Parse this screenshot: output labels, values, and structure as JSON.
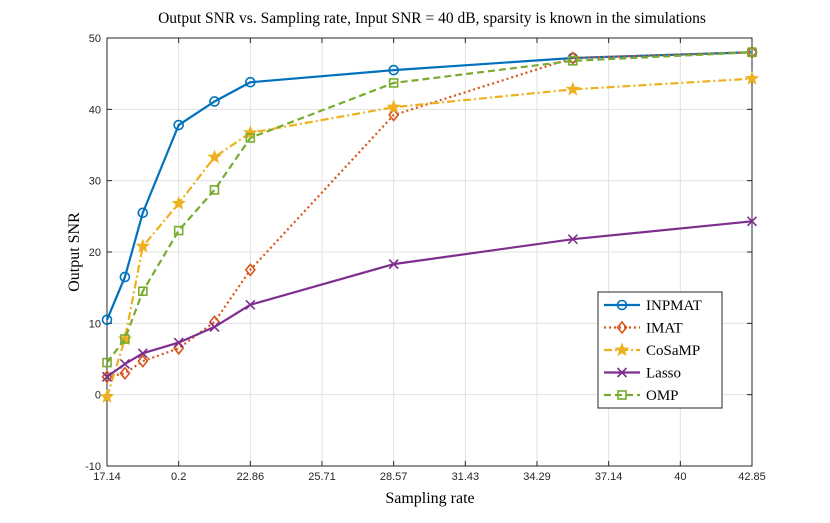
{
  "chart_data": {
    "type": "line",
    "title": "Output SNR vs. Sampling rate, Input SNR = 40 dB, sparsity is known in the simulations",
    "xlabel": "Sampling rate",
    "ylabel": "Output SNR",
    "grid": true,
    "legend_position": "bottom-right",
    "xticks": [
      "17.14",
      "0.2",
      "22.86",
      "25.71",
      "28.57",
      "31.43",
      "34.29",
      "37.14",
      "40",
      "42.85"
    ],
    "xlim": [
      0,
      9
    ],
    "ylim": [
      -10,
      50
    ],
    "yticks": [
      -10,
      0,
      10,
      20,
      30,
      40,
      50
    ],
    "x_positions": [
      0,
      0.25,
      0.5,
      1,
      1.5,
      2,
      4,
      6.5,
      9
    ],
    "series": [
      {
        "name": "INPMAT",
        "color": "#0072BD",
        "dash": "solid",
        "marker": "circle",
        "values": [
          10.5,
          16.5,
          25.5,
          37.8,
          41.1,
          43.8,
          45.5,
          47.2,
          48.0
        ]
      },
      {
        "name": "IMAT",
        "color": "#D95319",
        "dash": "dotted",
        "marker": "diamond",
        "values": [
          2.5,
          3.0,
          4.7,
          6.5,
          10.2,
          17.5,
          39.2,
          47.2,
          48.0
        ]
      },
      {
        "name": "CoSaMP",
        "color": "#EDB120",
        "dash": "dashdot",
        "marker": "star",
        "values": [
          -0.3,
          7.8,
          20.8,
          26.8,
          33.3,
          36.7,
          40.3,
          42.8,
          44.3
        ]
      },
      {
        "name": "Lasso",
        "color": "#7E2F8E",
        "dash": "solid",
        "marker": "x",
        "values": [
          2.5,
          4.3,
          5.8,
          7.3,
          9.5,
          12.6,
          18.3,
          21.8,
          24.3
        ]
      },
      {
        "name": "OMP",
        "color": "#77AC30",
        "dash": "dashed",
        "marker": "square",
        "values": [
          4.5,
          7.8,
          14.5,
          23.0,
          28.7,
          36.0,
          43.7,
          46.8,
          48.0
        ]
      }
    ]
  }
}
